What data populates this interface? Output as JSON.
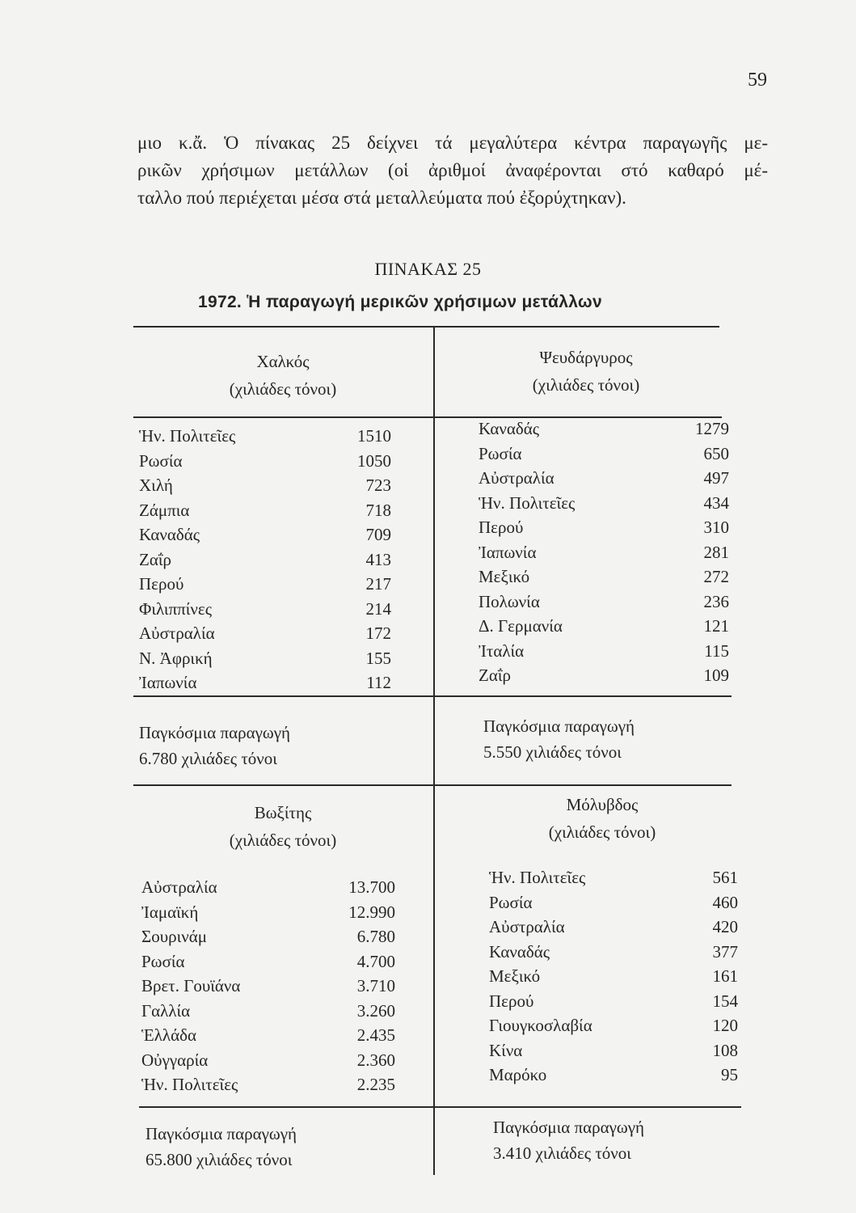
{
  "page_number": "59",
  "paragraph_lines": [
    "μιο κ.ἄ. Ὁ πίνακας 25 δείχνει τά μεγαλύτερα κέντρα παραγωγῆς με-",
    "ρικῶν χρήσιμων μετάλλων (οἱ ἀριθμοί ἀναφέρονται στό καθαρό μέ-",
    "ταλλο πού περιέχεται μέσα στά μεταλλεύματα πού ἐξορύχτηκαν)."
  ],
  "table": {
    "label": "ΠΙΝΑΚΑΣ 25",
    "title": "1972. Ἡ παραγωγή μερικῶν χρήσιμων μετάλλων",
    "sections": [
      {
        "name": "Χαλκός",
        "unit": "(χιλιάδες τόνοι)",
        "rows": [
          [
            "Ἡν. Πολιτεῖες",
            "1510"
          ],
          [
            "Ρωσία",
            "1050"
          ],
          [
            "Χιλή",
            "723"
          ],
          [
            "Ζάμπια",
            "718"
          ],
          [
            "Καναδάς",
            "709"
          ],
          [
            "Ζαΐρ",
            "413"
          ],
          [
            "Περού",
            "217"
          ],
          [
            "Φιλιππίνες",
            "214"
          ],
          [
            "Αὐστραλία",
            "172"
          ],
          [
            "Ν. Ἀφρική",
            "155"
          ],
          [
            "Ἰαπωνία",
            "112"
          ]
        ],
        "total_label": "Παγκόσμια παραγωγή",
        "total_value": "6.780 χιλιάδες τόνοι"
      },
      {
        "name": "Ψευδάργυρος",
        "unit": "(χιλιάδες τόνοι)",
        "rows": [
          [
            "Καναδάς",
            "1279"
          ],
          [
            "Ρωσία",
            "650"
          ],
          [
            "Αὐστραλία",
            "497"
          ],
          [
            "Ἡν. Πολιτεῖες",
            "434"
          ],
          [
            "Περού",
            "310"
          ],
          [
            "Ἰαπωνία",
            "281"
          ],
          [
            "Μεξικό",
            "272"
          ],
          [
            "Πολωνία",
            "236"
          ],
          [
            "Δ. Γερμανία",
            "121"
          ],
          [
            "Ἰταλία",
            "115"
          ],
          [
            "Ζαΐρ",
            "109"
          ]
        ],
        "total_label": "Παγκόσμια παραγωγή",
        "total_value": "5.550 χιλιάδες τόνοι"
      },
      {
        "name": "Βωξίτης",
        "unit": "(χιλιάδες τόνοι)",
        "rows": [
          [
            "Αὐστραλία",
            "13.700"
          ],
          [
            "Ἰαμαϊκή",
            "12.990"
          ],
          [
            "Σουρινάμ",
            "6.780"
          ],
          [
            "Ρωσία",
            "4.700"
          ],
          [
            "Βρετ. Γουϊάνα",
            "3.710"
          ],
          [
            "Γαλλία",
            "3.260"
          ],
          [
            "Ἑλλάδα",
            "2.435"
          ],
          [
            "Οὐγγαρία",
            "2.360"
          ],
          [
            "Ἡν. Πολιτεῖες",
            "2.235"
          ]
        ],
        "total_label": "Παγκόσμια παραγωγή",
        "total_value": "65.800 χιλιάδες τόνοι"
      },
      {
        "name": "Μόλυβδος",
        "unit": "(χιλιάδες τόνοι)",
        "rows": [
          [
            "Ἡν. Πολιτεῖες",
            "561"
          ],
          [
            "Ρωσία",
            "460"
          ],
          [
            "Αὐστραλία",
            "420"
          ],
          [
            "Καναδάς",
            "377"
          ],
          [
            "Μεξικό",
            "161"
          ],
          [
            "Περού",
            "154"
          ],
          [
            "Γιουγκοσλαβία",
            "120"
          ],
          [
            "Κίνα",
            "108"
          ],
          [
            "Μαρόκο",
            "95"
          ]
        ],
        "total_label": "Παγκόσμια παραγωγή",
        "total_value": "3.410 χιλιάδες τόνοι"
      }
    ]
  }
}
